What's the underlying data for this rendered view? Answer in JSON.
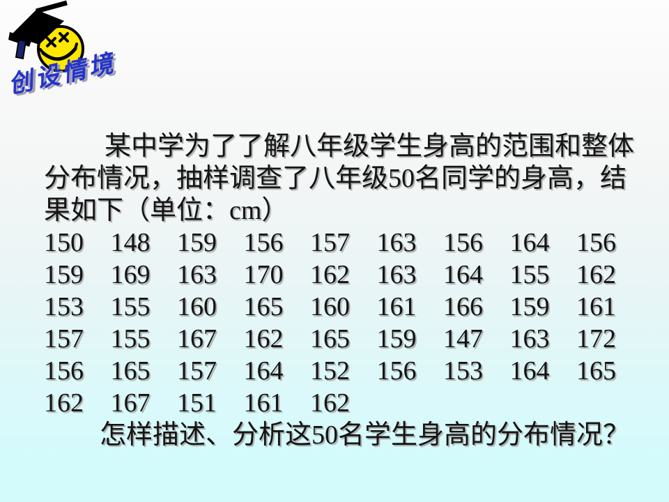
{
  "slide": {
    "section_badge": "创设情境",
    "intro_lines": [
      "某中学为了了解八年级学生身高的范围和整体",
      "分布情况，抽样调查了八年级50名同学的身高，结",
      "果如下（单位：cm）"
    ],
    "height_rows": [
      [
        "150",
        "148",
        "159",
        "156",
        "157",
        "163",
        "156",
        "164",
        "156"
      ],
      [
        "159",
        "169",
        "163",
        "170",
        "162",
        "163",
        "164",
        "155",
        "162"
      ],
      [
        "153",
        "155",
        "160",
        "165",
        "160",
        "161",
        "166",
        "159",
        "161"
      ],
      [
        "157",
        "155",
        "167",
        "162",
        "165",
        "159",
        "147",
        "163",
        "172"
      ],
      [
        "156",
        "165",
        "157",
        "164",
        "152",
        "156",
        "153",
        "164",
        "165"
      ],
      [
        "162",
        "167",
        "151",
        "161",
        "162"
      ]
    ],
    "question": "怎样描述、分析这50名学生身高的分布情况？",
    "colors": {
      "badge_blue": "#2433cb",
      "smiley_yellow": "#ffe800",
      "cap_black": "#000000",
      "tassel_navy": "#1a246e",
      "background_top": "#fdfdfd",
      "background_bottom": "#d4fbfc",
      "text_shadow_gray": "#ababab"
    }
  }
}
